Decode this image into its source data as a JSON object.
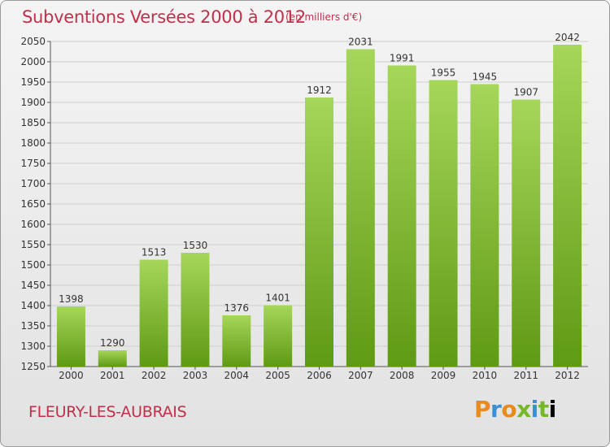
{
  "title": "Subventions Versées 2000 à 2012",
  "unit_note": "(en milliers d'€)",
  "commune": "FLEURY-LES-AUBRAIS",
  "logo": {
    "text": "Proxiti",
    "icon": "proxiti-logo"
  },
  "colors": {
    "bar_light": "#a6d65a",
    "bar_dark": "#5f9a14",
    "text": "#c0304a",
    "grid": "#cfcfcf"
  },
  "chart_data": {
    "type": "bar",
    "title": "Subventions Versées 2000 à 2012",
    "xlabel": "",
    "ylabel": "",
    "categories": [
      "2000",
      "2001",
      "2002",
      "2003",
      "2004",
      "2005",
      "2006",
      "2007",
      "2008",
      "2009",
      "2010",
      "2011",
      "2012"
    ],
    "values": [
      1398,
      1290,
      1513,
      1530,
      1376,
      1401,
      1912,
      2031,
      1991,
      1955,
      1945,
      1907,
      2042
    ],
    "ylim": [
      1250,
      2050
    ],
    "yticks": [
      1250,
      1300,
      1350,
      1400,
      1450,
      1500,
      1550,
      1600,
      1650,
      1700,
      1750,
      1800,
      1850,
      1900,
      1950,
      2000,
      2050
    ],
    "grid": true,
    "data_labels": true,
    "legend": "none"
  }
}
